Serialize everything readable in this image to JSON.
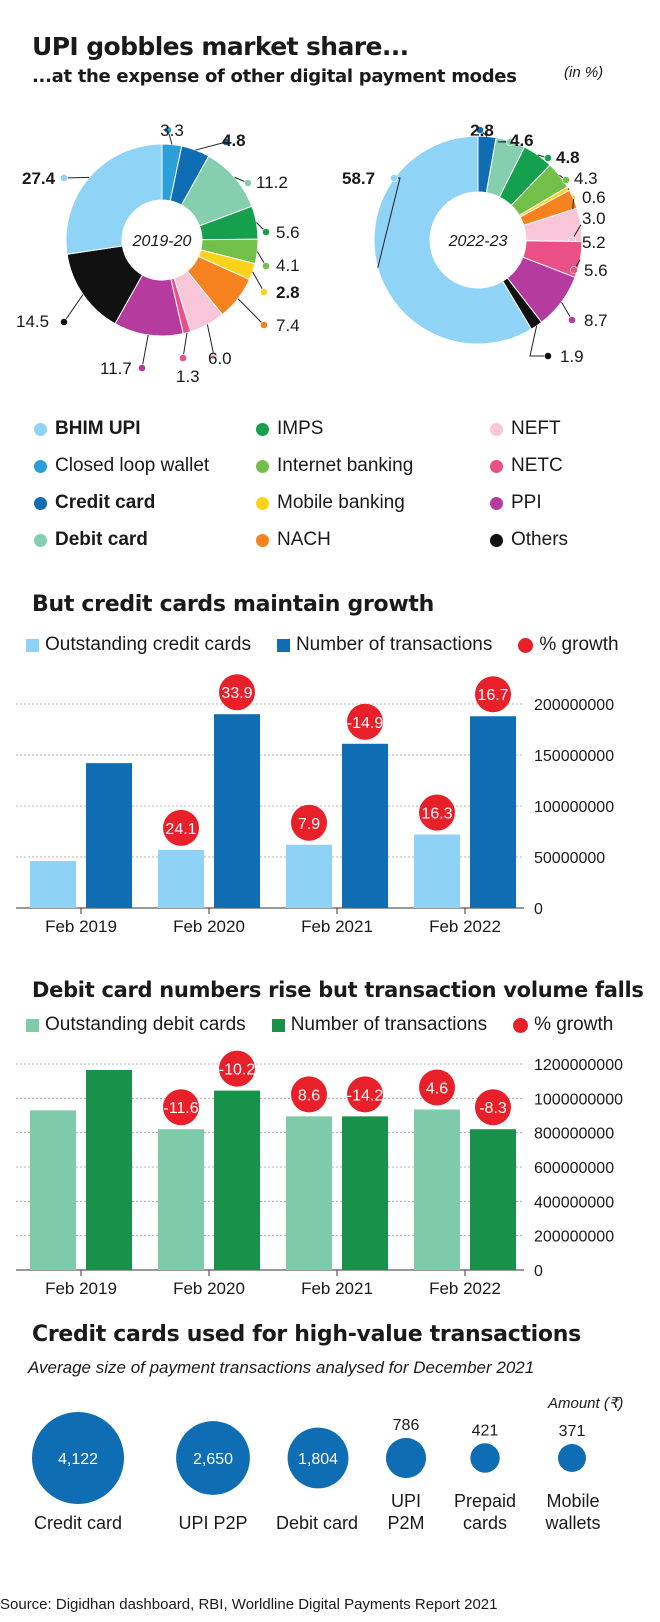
{
  "header": {
    "title": "UPI gobbles market share...",
    "subtitle": "...at the expense of other digital payment modes",
    "unit": "(in %)"
  },
  "colors": {
    "bhim_upi": "#8fd3f7",
    "closed_loop_wallet": "#2a9fd8",
    "credit_card": "#0e6db3",
    "debit_card": "#86cfae",
    "imps": "#14a04c",
    "internet_banking": "#72c04a",
    "mobile_banking": "#ffd21a",
    "nach": "#f5821f",
    "neft": "#f8c6d8",
    "netc": "#ea4f86",
    "ppi": "#b53b9f",
    "others": "#111111",
    "growth_red": "#e8202a",
    "cc_outstanding": "#8ed3f6",
    "cc_transactions": "#0e6db3",
    "dc_outstanding": "#7fcaa8",
    "dc_transactions": "#18924a",
    "bubble_blue": "#0e6db3"
  },
  "chart_data": [
    {
      "type": "pie",
      "center_label": "2019-20",
      "slices": [
        {
          "category": "Closed loop wallet",
          "value": 3.3,
          "color_key": "closed_loop_wallet"
        },
        {
          "category": "Credit card",
          "value": 4.8,
          "color_key": "credit_card"
        },
        {
          "category": "Debit card",
          "value": 11.2,
          "color_key": "debit_card"
        },
        {
          "category": "IMPS",
          "value": 5.6,
          "color_key": "imps"
        },
        {
          "category": "Internet banking",
          "value": 4.1,
          "color_key": "internet_banking"
        },
        {
          "category": "Mobile banking",
          "value": 2.8,
          "color_key": "mobile_banking"
        },
        {
          "category": "NACH",
          "value": 7.4,
          "color_key": "nach"
        },
        {
          "category": "NEFT",
          "value": 6.0,
          "color_key": "neft"
        },
        {
          "category": "NETC",
          "value": 1.3,
          "color_key": "netc"
        },
        {
          "category": "PPI",
          "value": 11.7,
          "color_key": "ppi"
        },
        {
          "category": "Others",
          "value": 14.5,
          "color_key": "others"
        },
        {
          "category": "BHIM UPI",
          "value": 27.4,
          "color_key": "bhim_upi"
        }
      ],
      "labels": [
        "3.3",
        "4.8",
        "11.2",
        "5.6",
        "4.1",
        "2.8",
        "7.4",
        "6.0",
        "1.3",
        "11.7",
        "14.5",
        "27.4"
      ]
    },
    {
      "type": "pie",
      "center_label": "2022-23",
      "slices": [
        {
          "category": "Credit card",
          "value": 2.8,
          "color_key": "credit_card"
        },
        {
          "category": "Debit card",
          "value": 4.6,
          "color_key": "debit_card"
        },
        {
          "category": "IMPS",
          "value": 4.8,
          "color_key": "imps"
        },
        {
          "category": "Internet banking",
          "value": 4.3,
          "color_key": "internet_banking"
        },
        {
          "category": "Mobile banking",
          "value": 0.6,
          "color_key": "mobile_banking"
        },
        {
          "category": "NACH",
          "value": 3.0,
          "color_key": "nach"
        },
        {
          "category": "NEFT",
          "value": 5.2,
          "color_key": "neft"
        },
        {
          "category": "NETC",
          "value": 5.6,
          "color_key": "netc"
        },
        {
          "category": "PPI",
          "value": 8.7,
          "color_key": "ppi"
        },
        {
          "category": "Others",
          "value": 1.9,
          "color_key": "others"
        },
        {
          "category": "BHIM UPI",
          "value": 58.7,
          "color_key": "bhim_upi"
        }
      ],
      "labels": [
        "2.8",
        "4.6",
        "4.8",
        "4.3",
        "0.6",
        "3.0",
        "5.2",
        "5.6",
        "8.7",
        "1.9",
        "58.7"
      ]
    },
    {
      "type": "bar",
      "title": "But credit cards maintain growth",
      "categories": [
        "Feb 2019",
        "Feb 2020",
        "Feb 2021",
        "Feb 2022"
      ],
      "series": [
        {
          "name": "Outstanding credit cards",
          "values": [
            46000000,
            57000000,
            62000000,
            72000000
          ]
        },
        {
          "name": "Number of transactions",
          "values": [
            142000000,
            190000000,
            161000000,
            188000000
          ]
        }
      ],
      "growth_legend": "% growth",
      "growth_labels": [
        [
          "",
          ""
        ],
        [
          "24.1",
          "33.9"
        ],
        [
          "7.9",
          "-14.9"
        ],
        [
          "16.3",
          "16.7"
        ]
      ],
      "ylim": [
        0,
        200000000
      ],
      "yticks": [
        "0",
        "50000000",
        "100000000",
        "150000000",
        "200000000"
      ]
    },
    {
      "type": "bar",
      "title": "Debit card numbers rise but transaction volume falls",
      "categories": [
        "Feb 2019",
        "Feb 2020",
        "Feb 2021",
        "Feb 2022"
      ],
      "series": [
        {
          "name": "Outstanding debit cards",
          "values": [
            930000000,
            820000000,
            895000000,
            935000000
          ]
        },
        {
          "name": "Number of transactions",
          "values": [
            1165000000,
            1045000000,
            895000000,
            820000000
          ]
        }
      ],
      "growth_legend": "% growth",
      "growth_labels": [
        [
          "",
          ""
        ],
        [
          "-11.6",
          "-10.2"
        ],
        [
          "8.6",
          "-14.2"
        ],
        [
          "4.6",
          "-8.3"
        ]
      ],
      "ylim": [
        0,
        1200000000
      ],
      "yticks": [
        "0",
        "200000000",
        "400000000",
        "600000000",
        "800000000",
        "1000000000",
        "1200000000"
      ]
    },
    {
      "type": "bubble",
      "title": "Credit cards used for high-value transactions",
      "subtitle": "Average size of payment transactions analysed for December 2021",
      "unit": "Amount (₹)",
      "items": [
        {
          "name": "Credit card",
          "value": 4122,
          "label": "4,122"
        },
        {
          "name": "UPI P2P",
          "value": 2650,
          "label": "2,650"
        },
        {
          "name": "Debit card",
          "value": 1804,
          "label": "1,804"
        },
        {
          "name": "UPI P2M",
          "value": 786,
          "label": "786"
        },
        {
          "name": "Prepaid cards",
          "value": 421,
          "label": "421"
        },
        {
          "name": "Mobile wallets",
          "value": 371,
          "label": "371"
        }
      ]
    }
  ],
  "legend": [
    {
      "label": "BHIM UPI",
      "color_key": "bhim_upi",
      "bold": true
    },
    {
      "label": "IMPS",
      "color_key": "imps",
      "bold": false
    },
    {
      "label": "NEFT",
      "color_key": "neft",
      "bold": false
    },
    {
      "label": "Closed loop wallet",
      "color_key": "closed_loop_wallet",
      "bold": false
    },
    {
      "label": "Internet banking",
      "color_key": "internet_banking",
      "bold": false
    },
    {
      "label": "NETC",
      "color_key": "netc",
      "bold": false
    },
    {
      "label": "Credit card",
      "color_key": "credit_card",
      "bold": true
    },
    {
      "label": "Mobile banking",
      "color_key": "mobile_banking",
      "bold": false
    },
    {
      "label": "PPI",
      "color_key": "ppi",
      "bold": false
    },
    {
      "label": "Debit card",
      "color_key": "debit_card",
      "bold": true
    },
    {
      "label": "NACH",
      "color_key": "nach",
      "bold": false
    },
    {
      "label": "Others",
      "color_key": "others",
      "bold": false
    }
  ],
  "bubble_labels": {
    "credit_card": "Credit card",
    "upi_p2p": "UPI P2P",
    "debit_card": "Debit card",
    "upi_p2m_1": "UPI",
    "upi_p2m_2": "P2M",
    "prepaid_1": "Prepaid",
    "prepaid_2": "cards",
    "wallets_1": "Mobile",
    "wallets_2": "wallets"
  },
  "source": "Source: Digidhan dashboard, RBI, Worldline Digital Payments Report 2021"
}
